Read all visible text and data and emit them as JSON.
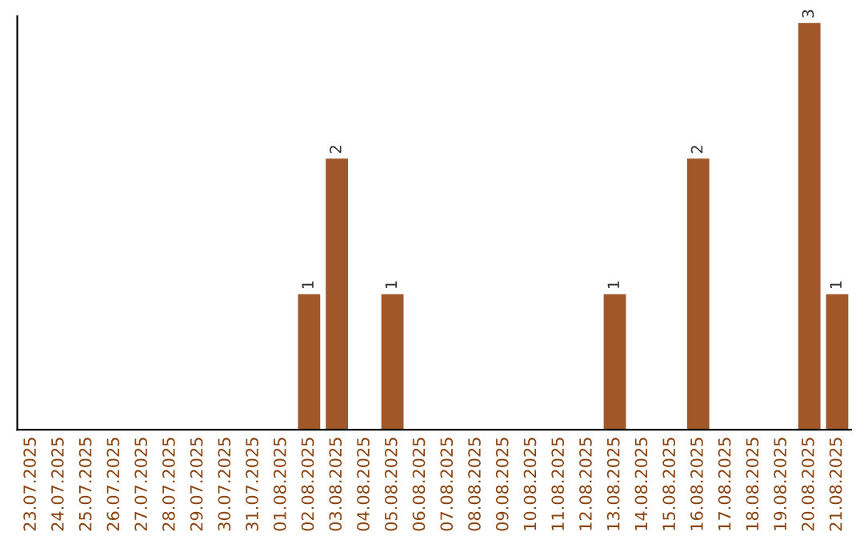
{
  "chart_data": {
    "type": "bar",
    "categories": [
      "23.07.2025",
      "24.07.2025",
      "25.07.2025",
      "26.07.2025",
      "27.07.2025",
      "28.07.2025",
      "29.07.2025",
      "30.07.2025",
      "31.07.2025",
      "01.08.2025",
      "02.08.2025",
      "03.08.2025",
      "04.08.2025",
      "05.08.2025",
      "06.08.2025",
      "07.08.2025",
      "08.08.2025",
      "09.08.2025",
      "10.08.2025",
      "11.08.2025",
      "12.08.2025",
      "13.08.2025",
      "14.08.2025",
      "15.08.2025",
      "16.08.2025",
      "17.08.2025",
      "18.08.2025",
      "19.08.2025",
      "20.08.2025",
      "21.08.2025"
    ],
    "values": [
      0,
      0,
      0,
      0,
      0,
      0,
      0,
      0,
      0,
      0,
      1,
      2,
      0,
      1,
      0,
      0,
      0,
      0,
      0,
      0,
      0,
      1,
      0,
      0,
      2,
      0,
      0,
      0,
      3,
      1
    ],
    "value_labels": [
      null,
      null,
      null,
      null,
      null,
      null,
      null,
      null,
      null,
      null,
      "1",
      "2",
      null,
      "1",
      null,
      null,
      null,
      null,
      null,
      null,
      null,
      "1",
      null,
      null,
      "2",
      null,
      null,
      null,
      "3",
      "1"
    ],
    "color": "#a0582a",
    "ylim": [
      0,
      3.05
    ],
    "tick_labels": "x",
    "grid": false
  }
}
